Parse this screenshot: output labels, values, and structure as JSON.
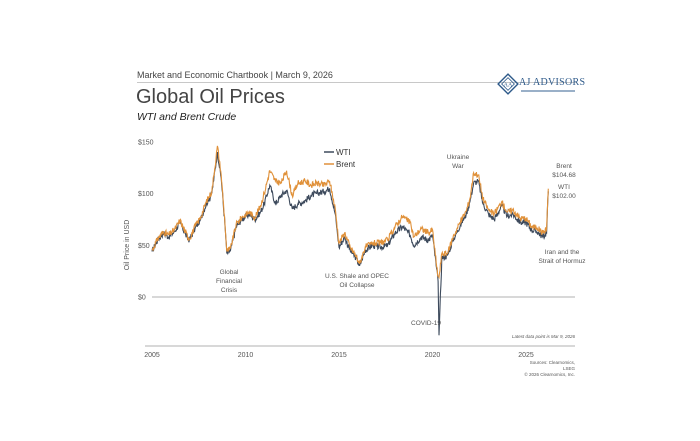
{
  "header": {
    "kicker": "Market and Economic Chartbook | March 9, 2026",
    "title": "Global Oil Prices",
    "subtitle": "WTI and Brent Crude",
    "logo_text": "AJ ADVISORS",
    "logo_icon": "diamond-monogram-icon"
  },
  "colors": {
    "wti": "#3d4a5c",
    "brent": "#e0913a",
    "axis": "#b0b0b0"
  },
  "chart_data": {
    "type": "line",
    "title": "Global Oil Prices",
    "subtitle": "WTI and Brent Crude",
    "xlabel": "",
    "ylabel": "Oil Price in USD",
    "xlim": [
      2005,
      2026.2
    ],
    "ylim": [
      -40,
      150
    ],
    "xticks": [
      2005,
      2010,
      2015,
      2020,
      2025
    ],
    "xtick_labels": [
      "2005",
      "2010",
      "2015",
      "2020",
      "2025"
    ],
    "yticks": [
      0,
      50,
      100,
      150
    ],
    "ytick_labels": [
      "$0",
      "$50",
      "$100",
      "$150"
    ],
    "grid": false,
    "legend": {
      "placement": "top-center",
      "entries": [
        "WTI",
        "Brent"
      ]
    },
    "series": [
      {
        "name": "WTI",
        "x": [
          2005.0,
          2005.3,
          2005.6,
          2005.9,
          2006.2,
          2006.5,
          2006.8,
          2007.0,
          2007.3,
          2007.6,
          2007.9,
          2008.2,
          2008.5,
          2008.7,
          2008.9,
          2009.0,
          2009.2,
          2009.5,
          2009.8,
          2010.2,
          2010.5,
          2010.8,
          2011.0,
          2011.3,
          2011.6,
          2011.9,
          2012.2,
          2012.5,
          2012.8,
          2013.2,
          2013.5,
          2013.8,
          2014.2,
          2014.5,
          2014.8,
          2015.0,
          2015.3,
          2015.6,
          2015.9,
          2016.1,
          2016.4,
          2016.8,
          2017.2,
          2017.6,
          2018.0,
          2018.4,
          2018.8,
          2019.0,
          2019.4,
          2019.8,
          2020.0,
          2020.2,
          2020.3,
          2020.35,
          2020.5,
          2020.8,
          2021.1,
          2021.5,
          2021.8,
          2022.0,
          2022.2,
          2022.45,
          2022.7,
          2023.0,
          2023.3,
          2023.7,
          2024.0,
          2024.3,
          2024.7,
          2025.0,
          2025.3,
          2025.6,
          2025.9,
          2026.1,
          2026.19
        ],
        "values": [
          44,
          55,
          62,
          58,
          63,
          72,
          60,
          55,
          66,
          75,
          90,
          100,
          140,
          115,
          70,
          42,
          45,
          68,
          75,
          80,
          75,
          82,
          90,
          108,
          90,
          98,
          103,
          85,
          90,
          93,
          98,
          100,
          102,
          105,
          80,
          48,
          58,
          45,
          38,
          30,
          45,
          50,
          48,
          50,
          62,
          68,
          60,
          50,
          58,
          55,
          60,
          30,
          15,
          -37,
          38,
          40,
          55,
          70,
          80,
          92,
          110,
          112,
          90,
          80,
          75,
          88,
          78,
          80,
          72,
          72,
          65,
          63,
          58,
          62,
          102.0
        ]
      },
      {
        "name": "Brent",
        "x": [
          2005.0,
          2005.3,
          2005.6,
          2005.9,
          2006.2,
          2006.5,
          2006.8,
          2007.0,
          2007.3,
          2007.6,
          2007.9,
          2008.2,
          2008.5,
          2008.7,
          2008.9,
          2009.0,
          2009.2,
          2009.5,
          2009.8,
          2010.2,
          2010.5,
          2010.8,
          2011.0,
          2011.3,
          2011.6,
          2011.9,
          2012.2,
          2012.5,
          2012.8,
          2013.2,
          2013.5,
          2013.8,
          2014.2,
          2014.5,
          2014.8,
          2015.0,
          2015.3,
          2015.6,
          2015.9,
          2016.1,
          2016.4,
          2016.8,
          2017.2,
          2017.6,
          2018.0,
          2018.4,
          2018.8,
          2019.0,
          2019.4,
          2019.8,
          2020.0,
          2020.2,
          2020.3,
          2020.35,
          2020.5,
          2020.8,
          2021.1,
          2021.5,
          2021.8,
          2022.0,
          2022.2,
          2022.45,
          2022.7,
          2023.0,
          2023.3,
          2023.7,
          2024.0,
          2024.3,
          2024.7,
          2025.0,
          2025.3,
          2025.6,
          2025.9,
          2026.1,
          2026.19
        ],
        "values": [
          45,
          56,
          63,
          60,
          65,
          74,
          62,
          56,
          68,
          77,
          92,
          102,
          146,
          118,
          72,
          44,
          47,
          70,
          77,
          82,
          77,
          88,
          100,
          122,
          112,
          110,
          122,
          98,
          110,
          112,
          108,
          110,
          108,
          112,
          85,
          52,
          62,
          48,
          40,
          32,
          48,
          52,
          52,
          55,
          68,
          78,
          72,
          58,
          66,
          62,
          65,
          33,
          20,
          19,
          42,
          42,
          58,
          73,
          83,
          95,
          120,
          118,
          95,
          84,
          80,
          92,
          82,
          84,
          76,
          76,
          68,
          67,
          62,
          66,
          104.68
        ]
      }
    ],
    "annotations": [
      {
        "label": "Global Financial Crisis",
        "x": 2008.9
      },
      {
        "label": "U.S. Shale and OPEC Oil Collapse",
        "x": 2016.0
      },
      {
        "label": "COVID-19",
        "x": 2020.35
      },
      {
        "label": "Ukraine War",
        "x": 2022.2
      },
      {
        "label": "Iran and the Strait of Hormuz",
        "x": 2025.6
      }
    ],
    "end_labels": {
      "brent_label": "Brent",
      "brent_value": "$104.68",
      "wti_label": "WTI",
      "wti_value": "$102.00"
    },
    "latest_note": "Latest data point is Mar 9, 2026"
  },
  "footer": {
    "sources": "Sources: Clearnomics,",
    "sources2": "LSEG",
    "copyright": "© 2026 Clearnomics, Inc."
  }
}
